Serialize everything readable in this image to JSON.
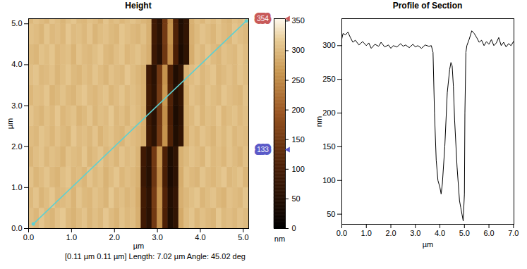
{
  "chart_data": [
    {
      "type": "heatmap",
      "title": "Height",
      "x_label": "µm",
      "y_label": "µm",
      "xlim": [
        0,
        5.125
      ],
      "ylim": [
        0,
        5.125
      ],
      "xticks": [
        0,
        1,
        2,
        3,
        4,
        5
      ],
      "yticks": [
        0,
        1,
        2,
        3,
        4,
        5
      ],
      "x": [
        0.0625,
        0.1875,
        0.3125,
        0.4375,
        0.5625,
        0.6875,
        0.8125,
        0.9375,
        1.0625,
        1.1875,
        1.3125,
        1.4375,
        1.5625,
        1.6875,
        1.8125,
        1.9375,
        2.0625,
        2.1875,
        2.3125,
        2.4375,
        2.5625,
        2.6875,
        2.8125,
        2.9375,
        3.0625,
        3.1875,
        3.3125,
        3.4375,
        3.5625,
        3.6875,
        3.8125,
        3.9375,
        4.0625,
        4.1875,
        4.3125,
        4.4375,
        4.5625,
        4.6875,
        4.8125,
        4.9375,
        5.0625
      ],
      "y": [
        0.25,
        0.75,
        1.25,
        1.75,
        2.25,
        2.75,
        3.25,
        3.75,
        4.25,
        4.75,
        5.25
      ],
      "cells": [
        [
          305,
          298,
          312,
          301,
          296,
          308,
          315,
          300,
          294,
          303,
          310,
          297,
          306,
          299,
          313,
          302,
          295,
          309,
          300,
          304,
          290,
          90,
          60,
          150,
          260,
          110,
          45,
          70,
          285,
          303,
          311,
          298,
          307,
          300,
          296,
          314,
          301,
          305,
          299,
          308,
          302
        ],
        [
          300,
          310,
          296,
          304,
          313,
          299,
          302,
          307,
          295,
          311,
          301,
          298,
          309,
          303,
          296,
          314,
          300,
          306,
          297,
          302,
          288,
          95,
          65,
          155,
          265,
          115,
          50,
          75,
          290,
          299,
          306,
          312,
          297,
          304,
          310,
          300,
          295,
          308,
          303,
          299,
          311
        ],
        [
          308,
          297,
          303,
          311,
          300,
          295,
          306,
          312,
          299,
          304,
          297,
          310,
          301,
          307,
          294,
          303,
          312,
          298,
          305,
          300,
          292,
          85,
          55,
          145,
          255,
          105,
          40,
          65,
          288,
          307,
          300,
          296,
          311,
          302,
          298,
          306,
          313,
          299,
          304,
          310,
          297
        ],
        [
          296,
          305,
          310,
          299,
          307,
          302,
          294,
          309,
          304,
          300,
          312,
          296,
          303,
          311,
          299,
          305,
          297,
          310,
          302,
          306,
          295,
          90,
          60,
          150,
          265,
          110,
          45,
          70,
          292,
          301,
          309,
          303,
          297,
          312,
          300,
          305,
          298,
          310,
          302,
          296,
          307
        ],
        [
          303,
          299,
          311,
          305,
          297,
          308,
          301,
          296,
          313,
          302,
          306,
          299,
          310,
          295,
          304,
          309,
          300,
          296,
          307,
          303,
          298,
          289,
          92,
          62,
          152,
          262,
          112,
          48,
          72,
          287,
          305,
          298,
          310,
          303,
          296,
          308,
          301,
          311,
          299,
          305,
          302
        ],
        [
          310,
          302,
          296,
          307,
          300,
          313,
          298,
          304,
          309,
          295,
          301,
          311,
          297,
          306,
          302,
          314,
          299,
          305,
          296,
          308,
          301,
          290,
          88,
          58,
          148,
          258,
          108,
          42,
          68,
          291,
          300,
          311,
          297,
          306,
          302,
          313,
          298,
          304,
          309,
          300,
          306
        ],
        [
          298,
          306,
          303,
          312,
          295,
          301,
          309,
          300,
          296,
          307,
          313,
          302,
          298,
          305,
          310,
          297,
          303,
          311,
          300,
          306,
          299,
          292,
          94,
          64,
          154,
          268,
          114,
          50,
          74,
          289,
          308,
          302,
          296,
          310,
          304,
          299,
          312,
          305,
          300,
          297,
          309
        ],
        [
          305,
          311,
          299,
          302,
          308,
          296,
          304,
          312,
          301,
          297,
          306,
          300,
          311,
          303,
          296,
          308,
          302,
          299,
          313,
          304,
          297,
          291,
          90,
          60,
          150,
          262,
          110,
          46,
          70,
          293,
          303,
          310,
          299,
          305,
          312,
          297,
          302,
          308,
          300,
          311,
          304
        ],
        [
          301,
          297,
          309,
          304,
          312,
          298,
          303,
          307,
          295,
          310,
          302,
          299,
          306,
          313,
          300,
          296,
          305,
          311,
          298,
          303,
          309,
          300,
          290,
          86,
          56,
          146,
          256,
          106,
          40,
          66,
          288,
          306,
          299,
          311,
          302,
          297,
          308,
          304,
          300,
          312,
          303
        ],
        [
          307,
          303,
          296,
          311,
          300,
          305,
          298,
          313,
          302,
          306,
          299,
          310,
          296,
          304,
          308,
          301,
          297,
          312,
          305,
          300,
          296,
          306,
          292,
          92,
          62,
          152,
          264,
          112,
          47,
          72,
          290,
          301,
          310,
          304,
          297,
          309,
          302,
          298,
          311,
          305,
          300
        ],
        [
          299,
          308,
          302,
          297,
          310,
          304,
          296,
          306,
          312,
          301,
          298,
          307,
          303,
          295,
          311,
          300,
          306,
          298,
          304,
          309,
          302,
          297,
          291,
          90,
          60,
          150,
          260,
          110,
          45,
          70,
          292,
          304,
          298,
          309,
          303,
          311,
          300,
          296,
          307,
          302,
          310
        ]
      ],
      "colorbar": {
        "range": [
          0,
          354
        ],
        "ticks": [
          0,
          50,
          100,
          150,
          200,
          250,
          300,
          350
        ],
        "label": "nm",
        "markers": [
          {
            "value": 354,
            "color": "#c85a5a"
          },
          {
            "value": 133,
            "color": "#5a5ac8"
          }
        ]
      },
      "section_line": {
        "x": [
          0.11,
          5.07
        ],
        "y": [
          0.11,
          5.07
        ],
        "color": "#5fd0d0"
      },
      "caption": "[0.11 µm 0.11 µm] Length: 7.02 µm Angle: 45.02 deg"
    },
    {
      "type": "line",
      "title": "Profile of Section",
      "x_label": "µm",
      "y_label": "nm",
      "xlim": [
        0,
        7.02
      ],
      "ylim": [
        35,
        340
      ],
      "xticks": [
        0,
        1,
        2,
        3,
        4,
        5,
        6,
        7
      ],
      "yticks": [
        50,
        100,
        150,
        200,
        250,
        300
      ],
      "color": "#000000",
      "x": [
        0,
        0.05,
        0.15,
        0.25,
        0.35,
        0.45,
        0.55,
        0.7,
        0.85,
        1.0,
        1.1,
        1.2,
        1.35,
        1.5,
        1.6,
        1.75,
        1.9,
        2.0,
        2.1,
        2.25,
        2.4,
        2.5,
        2.6,
        2.75,
        2.9,
        3.0,
        3.1,
        3.25,
        3.4,
        3.55,
        3.65,
        3.72,
        3.78,
        3.85,
        3.92,
        4.0,
        4.05,
        4.1,
        4.2,
        4.3,
        4.4,
        4.45,
        4.5,
        4.55,
        4.6,
        4.7,
        4.8,
        4.85,
        4.9,
        4.95,
        5.0,
        5.02,
        5.06,
        5.1,
        5.2,
        5.3,
        5.4,
        5.5,
        5.6,
        5.7,
        5.8,
        5.9,
        6.0,
        6.1,
        6.2,
        6.3,
        6.4,
        6.5,
        6.6,
        6.7,
        6.8,
        6.9,
        7.0
      ],
      "values": [
        310,
        318,
        316,
        320,
        312,
        305,
        308,
        301,
        306,
        300,
        304,
        296,
        302,
        299,
        305,
        298,
        301,
        296,
        300,
        298,
        303,
        299,
        301,
        297,
        302,
        298,
        300,
        296,
        301,
        299,
        300,
        290,
        200,
        130,
        100,
        90,
        80,
        95,
        150,
        230,
        265,
        275,
        270,
        240,
        190,
        120,
        70,
        60,
        50,
        40,
        80,
        200,
        290,
        300,
        310,
        322,
        318,
        312,
        305,
        308,
        300,
        306,
        302,
        309,
        300,
        304,
        312,
        300,
        305,
        298,
        303,
        300,
        306
      ]
    }
  ]
}
